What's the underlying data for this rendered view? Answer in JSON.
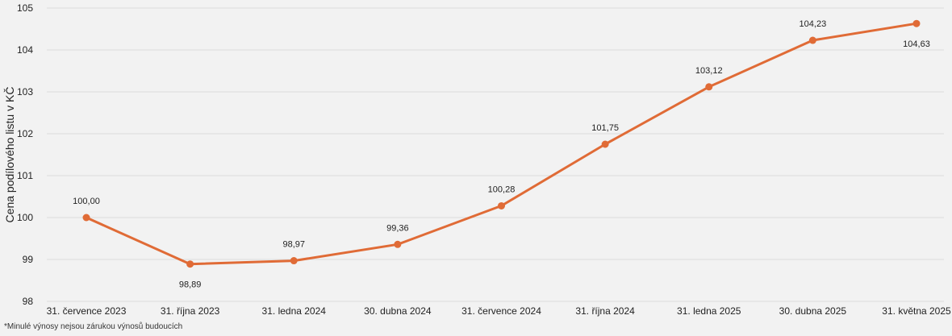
{
  "chart_data": {
    "type": "line",
    "categories": [
      "31. července 2023",
      "31. října 2023",
      "31. ledna 2024",
      "30. dubna 2024",
      "31. července 2024",
      "31. října 2024",
      "31. ledna 2025",
      "30. dubna 2025",
      "31. května 2025"
    ],
    "values": [
      100.0,
      98.89,
      98.97,
      99.36,
      100.28,
      101.75,
      103.12,
      104.23,
      104.63
    ],
    "data_labels": [
      "100,00",
      "98,89",
      "98,97",
      "99,36",
      "100,28",
      "101,75",
      "103,12",
      "104,23",
      "104,63"
    ],
    "ylabel": "Cena podílového listu v KČ",
    "xlabel": "",
    "ylim": [
      98,
      105
    ],
    "yticks": [
      98,
      99,
      100,
      101,
      102,
      103,
      104,
      105
    ],
    "grid": true,
    "line_color": "#e06b36"
  },
  "footnote": "*Minulé výnosy nejsou zárukou výnosů budoucích"
}
